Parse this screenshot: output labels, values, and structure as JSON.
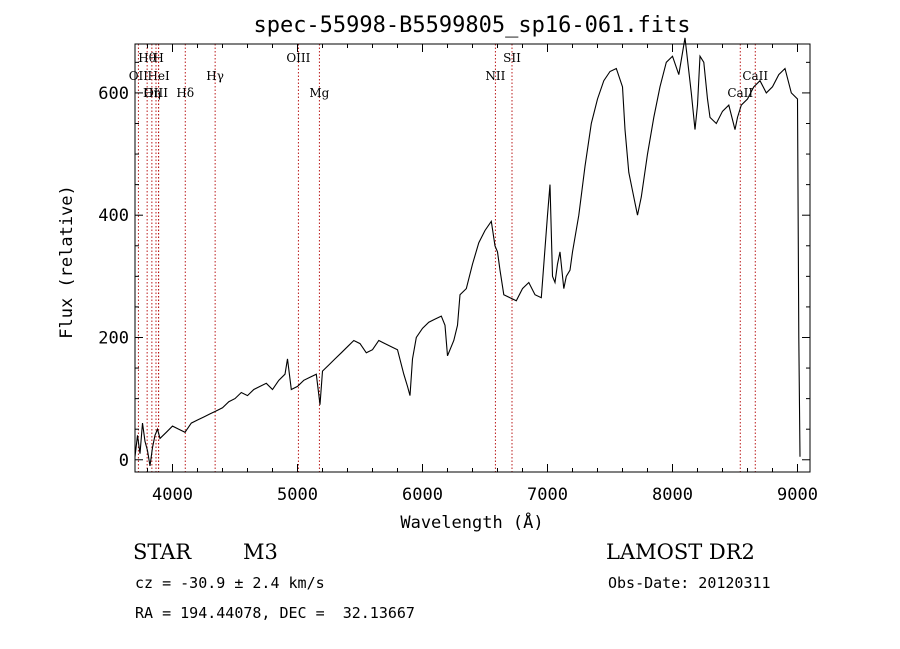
{
  "chart_data": {
    "type": "line",
    "title": "spec-55998-B5599805_sp16-061.fits",
    "xlabel": "Wavelength (Å)",
    "ylabel": "Flux (relative)",
    "xlim": [
      3700,
      9100
    ],
    "ylim": [
      -20,
      680
    ],
    "x_ticks": [
      4000,
      5000,
      6000,
      7000,
      8000,
      9000
    ],
    "y_ticks": [
      0,
      200,
      400,
      600
    ],
    "grid": false,
    "series": [
      {
        "name": "spectrum",
        "x": [
          3700,
          3720,
          3740,
          3760,
          3780,
          3800,
          3820,
          3840,
          3860,
          3880,
          3900,
          3950,
          4000,
          4050,
          4100,
          4150,
          4200,
          4250,
          4300,
          4350,
          4400,
          4450,
          4500,
          4550,
          4600,
          4650,
          4700,
          4750,
          4800,
          4850,
          4900,
          4920,
          4950,
          5000,
          5050,
          5100,
          5150,
          5180,
          5200,
          5250,
          5300,
          5350,
          5400,
          5450,
          5500,
          5550,
          5600,
          5650,
          5700,
          5750,
          5800,
          5850,
          5880,
          5900,
          5920,
          5950,
          6000,
          6050,
          6100,
          6150,
          6180,
          6200,
          6250,
          6280,
          6300,
          6350,
          6400,
          6450,
          6500,
          6550,
          6580,
          6600,
          6620,
          6650,
          6700,
          6750,
          6800,
          6850,
          6900,
          6950,
          7000,
          7020,
          7040,
          7060,
          7080,
          7100,
          7130,
          7150,
          7180,
          7200,
          7250,
          7300,
          7350,
          7400,
          7450,
          7500,
          7550,
          7600,
          7620,
          7650,
          7680,
          7700,
          7720,
          7750,
          7800,
          7850,
          7900,
          7950,
          8000,
          8050,
          8100,
          8150,
          8180,
          8200,
          8220,
          8250,
          8280,
          8300,
          8350,
          8400,
          8450,
          8500,
          8520,
          8550,
          8600,
          8650,
          8700,
          8750,
          8800,
          8850,
          8900,
          8950,
          9000,
          9010,
          9020
        ],
        "values": [
          5,
          40,
          10,
          60,
          30,
          15,
          -10,
          20,
          40,
          50,
          35,
          45,
          55,
          50,
          45,
          60,
          65,
          70,
          75,
          80,
          85,
          95,
          100,
          110,
          105,
          115,
          120,
          125,
          115,
          130,
          140,
          165,
          115,
          120,
          130,
          135,
          140,
          90,
          145,
          155,
          165,
          175,
          185,
          195,
          190,
          175,
          180,
          195,
          190,
          185,
          180,
          140,
          120,
          105,
          165,
          200,
          215,
          225,
          230,
          235,
          220,
          170,
          195,
          220,
          270,
          280,
          320,
          355,
          375,
          390,
          350,
          340,
          310,
          270,
          265,
          260,
          280,
          290,
          270,
          265,
          400,
          450,
          300,
          290,
          320,
          340,
          280,
          300,
          310,
          340,
          400,
          480,
          550,
          590,
          620,
          635,
          640,
          610,
          540,
          470,
          440,
          420,
          400,
          430,
          500,
          560,
          610,
          650,
          660,
          630,
          690,
          600,
          540,
          580,
          660,
          650,
          590,
          560,
          550,
          570,
          580,
          540,
          560,
          580,
          590,
          610,
          620,
          600,
          610,
          630,
          640,
          600,
          590,
          200,
          5
        ]
      }
    ],
    "lines": [
      {
        "label": "Hθ",
        "x": 3797
      },
      {
        "label": "H",
        "x": 3889
      },
      {
        "label": "OII",
        "x": 3727
      },
      {
        "label": "HeI",
        "x": 3889
      },
      {
        "label": "Hγ",
        "x": 4341
      },
      {
        "label": "OIII",
        "x": 5007
      },
      {
        "label": "OIII",
        "x": 3868
      },
      {
        "label": "Hη",
        "x": 3835
      },
      {
        "label": "Hδ",
        "x": 4102
      },
      {
        "label": "Mg",
        "x": 5175
      },
      {
        "label": "NII",
        "x": 6583
      },
      {
        "label": "SII",
        "x": 6716
      },
      {
        "label": "CaII",
        "x": 8542
      },
      {
        "label": "CaII",
        "x": 8662
      }
    ]
  },
  "footer": {
    "object_class": "STAR",
    "subclass": "M3",
    "survey": "LAMOST DR2",
    "redshift_line": "cz = -30.9 ± 2.4 km/s",
    "obs_date_line": "Obs-Date: 20120311",
    "coords_line": "RA = 194.44078, DEC =  32.13667"
  }
}
